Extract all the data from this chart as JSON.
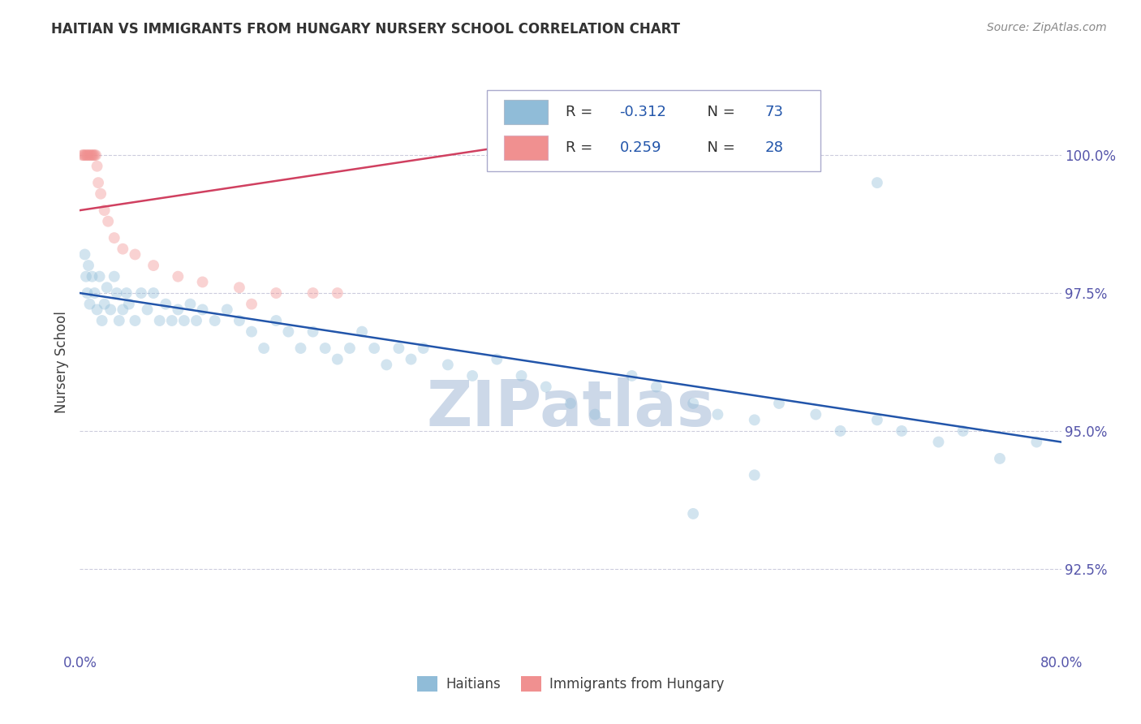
{
  "title": "HAITIAN VS IMMIGRANTS FROM HUNGARY NURSERY SCHOOL CORRELATION CHART",
  "source_text": "Source: ZipAtlas.com",
  "ylabel": "Nursery School",
  "xlim": [
    0.0,
    80.0
  ],
  "ylim": [
    91.0,
    101.5
  ],
  "yticks": [
    92.5,
    95.0,
    97.5,
    100.0
  ],
  "ytick_labels": [
    "92.5%",
    "95.0%",
    "97.5%",
    "100.0%"
  ],
  "xticks": [
    0.0,
    10.0,
    20.0,
    30.0,
    40.0,
    50.0,
    60.0,
    70.0,
    80.0
  ],
  "xtick_labels": [
    "0.0%",
    "",
    "",
    "",
    "",
    "",
    "",
    "",
    "80.0%"
  ],
  "legend_items": [
    {
      "label_r": "R = ",
      "label_val": "-0.312",
      "label_n": "  N = ",
      "label_nval": "73",
      "color": "#aac4e0"
    },
    {
      "label_r": "R =  ",
      "label_val": "0.259",
      "label_n": "  N = ",
      "label_nval": "28",
      "color": "#f0b0bc"
    }
  ],
  "blue_scatter_x": [
    0.4,
    0.5,
    0.6,
    0.7,
    0.8,
    1.0,
    1.2,
    1.4,
    1.6,
    1.8,
    2.0,
    2.2,
    2.5,
    2.8,
    3.0,
    3.2,
    3.5,
    3.8,
    4.0,
    4.5,
    5.0,
    5.5,
    6.0,
    6.5,
    7.0,
    7.5,
    8.0,
    8.5,
    9.0,
    9.5,
    10.0,
    11.0,
    12.0,
    13.0,
    14.0,
    15.0,
    16.0,
    17.0,
    18.0,
    19.0,
    20.0,
    21.0,
    22.0,
    23.0,
    24.0,
    25.0,
    26.0,
    27.0,
    28.0,
    30.0,
    32.0,
    34.0,
    36.0,
    38.0,
    40.0,
    42.0,
    45.0,
    47.0,
    50.0,
    52.0,
    55.0,
    57.0,
    60.0,
    62.0,
    65.0,
    67.0,
    70.0,
    72.0,
    75.0,
    65.0,
    50.0,
    55.0,
    78.0
  ],
  "blue_scatter_y": [
    98.2,
    97.8,
    97.5,
    98.0,
    97.3,
    97.8,
    97.5,
    97.2,
    97.8,
    97.0,
    97.3,
    97.6,
    97.2,
    97.8,
    97.5,
    97.0,
    97.2,
    97.5,
    97.3,
    97.0,
    97.5,
    97.2,
    97.5,
    97.0,
    97.3,
    97.0,
    97.2,
    97.0,
    97.3,
    97.0,
    97.2,
    97.0,
    97.2,
    97.0,
    96.8,
    96.5,
    97.0,
    96.8,
    96.5,
    96.8,
    96.5,
    96.3,
    96.5,
    96.8,
    96.5,
    96.2,
    96.5,
    96.3,
    96.5,
    96.2,
    96.0,
    96.3,
    96.0,
    95.8,
    95.5,
    95.3,
    96.0,
    95.8,
    95.5,
    95.3,
    95.2,
    95.5,
    95.3,
    95.0,
    95.2,
    95.0,
    94.8,
    95.0,
    94.5,
    99.5,
    93.5,
    94.2,
    94.8
  ],
  "pink_scatter_x": [
    0.2,
    0.3,
    0.4,
    0.5,
    0.6,
    0.7,
    0.8,
    0.9,
    1.0,
    1.1,
    1.2,
    1.3,
    1.4,
    1.5,
    1.7,
    2.0,
    2.3,
    2.8,
    3.5,
    4.5,
    6.0,
    8.0,
    10.0,
    13.0,
    16.0,
    19.0,
    21.0,
    14.0
  ],
  "pink_scatter_y": [
    100.0,
    100.0,
    100.0,
    100.0,
    100.0,
    100.0,
    100.0,
    100.0,
    100.0,
    100.0,
    100.0,
    100.0,
    99.8,
    99.5,
    99.3,
    99.0,
    98.8,
    98.5,
    98.3,
    98.2,
    98.0,
    97.8,
    97.7,
    97.6,
    97.5,
    97.5,
    97.5,
    97.3
  ],
  "blue_line_x": [
    0.0,
    80.0
  ],
  "blue_line_y": [
    97.5,
    94.8
  ],
  "pink_line_x": [
    0.0,
    45.0
  ],
  "pink_line_y": [
    99.0,
    100.5
  ],
  "scatter_size": 100,
  "scatter_alpha": 0.4,
  "blue_color": "#90bcd8",
  "pink_color": "#f09090",
  "blue_line_color": "#2255aa",
  "pink_line_color": "#d04060",
  "title_color": "#333333",
  "axis_label_color": "#404040",
  "tick_color": "#5555aa",
  "grid_color": "#ccccdd",
  "watermark_text": "ZIPatlas",
  "watermark_color": "#ccd8e8",
  "legend_title_color": "#2255aa",
  "legend_border_color": "#aaaacc",
  "bottom_legend_labels": [
    "Haitians",
    "Immigrants from Hungary"
  ]
}
